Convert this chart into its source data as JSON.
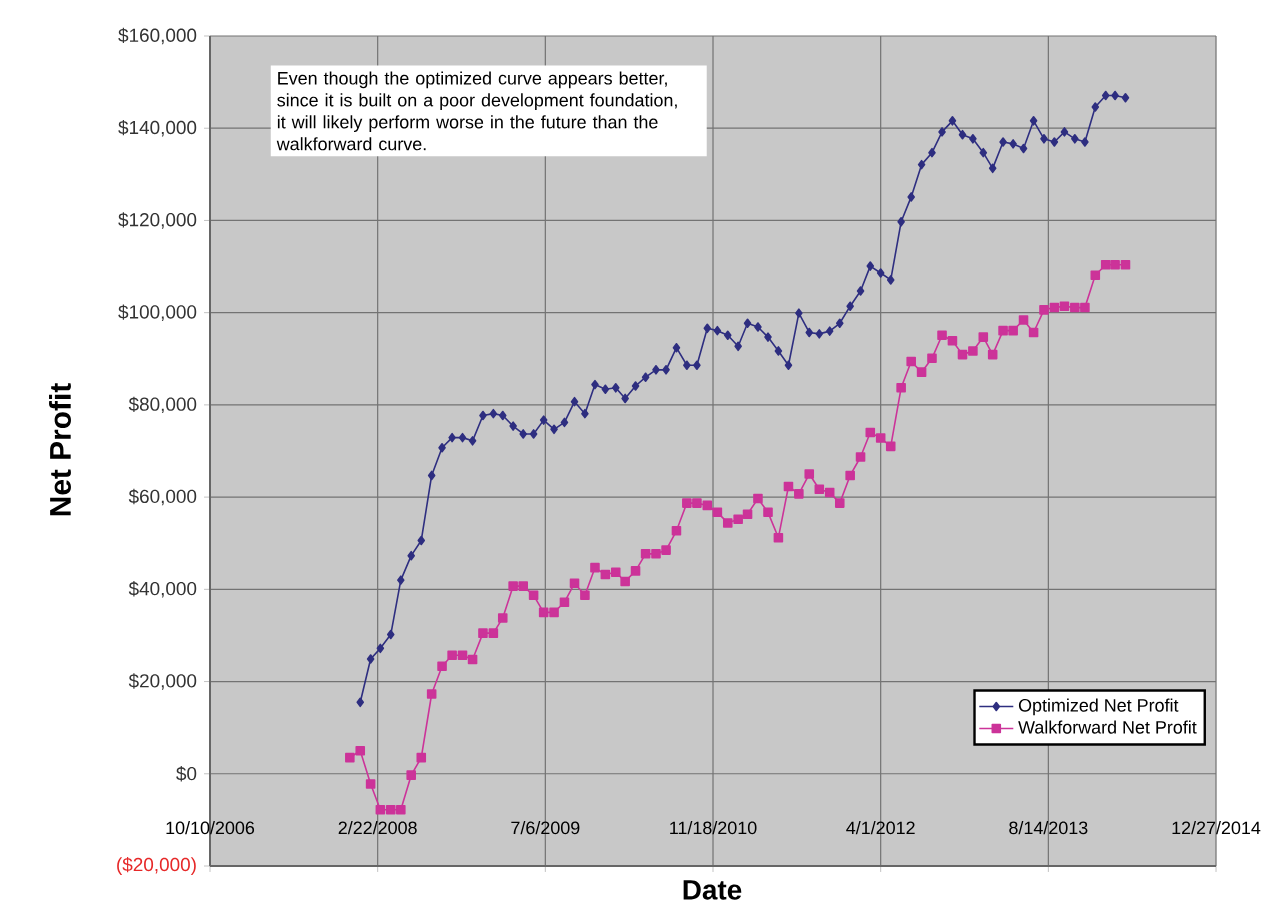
{
  "chart_data": {
    "type": "line",
    "xlabel": "Date",
    "ylabel": "Net Profit",
    "annotations": [
      "Even though the optimized curve appears better, since it is built on a poor development foundation, it will likely perform worse in the future than the walkforward curve."
    ],
    "xlim": [
      "2006-10-10",
      "2014-12-27"
    ],
    "xticks": [
      {
        "value": "2006-10-10",
        "label": "10/10/2006"
      },
      {
        "value": "2008-02-22",
        "label": "2/22/2008"
      },
      {
        "value": "2009-07-06",
        "label": "7/6/2009"
      },
      {
        "value": "2010-11-18",
        "label": "11/18/2010"
      },
      {
        "value": "2012-04-01",
        "label": "4/1/2012"
      },
      {
        "value": "2013-08-14",
        "label": "8/14/2013"
      },
      {
        "value": "2014-12-27",
        "label": "12/27/2014"
      }
    ],
    "ylim": [
      -20000,
      160000
    ],
    "yticks": [
      {
        "value": -20000,
        "label": "($20,000)"
      },
      {
        "value": 0,
        "label": "$0"
      },
      {
        "value": 20000,
        "label": "$20,000"
      },
      {
        "value": 40000,
        "label": "$40,000"
      },
      {
        "value": 60000,
        "label": "$60,000"
      },
      {
        "value": 80000,
        "label": "$80,000"
      },
      {
        "value": 100000,
        "label": "$100,000"
      },
      {
        "value": 120000,
        "label": "$120,000"
      },
      {
        "value": 140000,
        "label": "$140,000"
      },
      {
        "value": 160000,
        "label": "$160,000"
      }
    ],
    "grid": true,
    "legend": "bottom right",
    "line_style": "solid",
    "series": [
      {
        "name": "Optimized Net Profit",
        "color": "#2e2e80",
        "marker": "diamond",
        "x": [
          "2008-01",
          "2008-02",
          "2008-03",
          "2008-04",
          "2008-05",
          "2008-06",
          "2008-07",
          "2008-08",
          "2008-09",
          "2008-10",
          "2008-11",
          "2008-12",
          "2009-01",
          "2009-02",
          "2009-03",
          "2009-04",
          "2009-05",
          "2009-06",
          "2009-07",
          "2009-08",
          "2009-09",
          "2009-10",
          "2009-11",
          "2009-12",
          "2010-01",
          "2010-02",
          "2010-03",
          "2010-04",
          "2010-05",
          "2010-06",
          "2010-07",
          "2010-08",
          "2010-09",
          "2010-10",
          "2010-11",
          "2010-12",
          "2011-01",
          "2011-02",
          "2011-03",
          "2011-04",
          "2011-05",
          "2011-06",
          "2011-07",
          "2011-08",
          "2011-09",
          "2011-10",
          "2011-11",
          "2011-12",
          "2012-01",
          "2012-02",
          "2012-03",
          "2012-04",
          "2012-05",
          "2012-06",
          "2012-07",
          "2012-08",
          "2012-09",
          "2012-10",
          "2012-11",
          "2012-12",
          "2013-01",
          "2013-02",
          "2013-03",
          "2013-04",
          "2013-05",
          "2013-06",
          "2013-07",
          "2013-08",
          "2013-09",
          "2013-10",
          "2013-11",
          "2013-12",
          "2014-01",
          "2014-02",
          "2014-03",
          "2014-04"
        ],
        "values": [
          15500,
          24900,
          27200,
          30200,
          42000,
          47300,
          50600,
          64700,
          70700,
          72900,
          72900,
          72200,
          77700,
          78100,
          77700,
          75400,
          73700,
          73700,
          76700,
          74700,
          76200,
          80700,
          78100,
          84400,
          83400,
          83700,
          81400,
          84100,
          86000,
          87600,
          87600,
          92400,
          88600,
          88600,
          96600,
          96100,
          95100,
          92700,
          97700,
          96900,
          94700,
          91700,
          88600,
          99900,
          95700,
          95400,
          96000,
          97700,
          101400,
          104700,
          110100,
          108600,
          107100,
          119700,
          125100,
          132100,
          134700,
          139200,
          141600,
          138600,
          137700,
          134700,
          131300,
          137000,
          136600,
          135600,
          141600,
          137700,
          137000,
          139200,
          137700,
          137000,
          144600,
          147100,
          147100,
          146600
        ]
      },
      {
        "name": "Walkforward Net Profit",
        "color": "#cc3399",
        "marker": "square",
        "x": [
          "2007-12",
          "2008-01",
          "2008-02",
          "2008-03",
          "2008-04",
          "2008-05",
          "2008-06",
          "2008-07",
          "2008-08",
          "2008-09",
          "2008-10",
          "2008-11",
          "2008-12",
          "2009-01",
          "2009-02",
          "2009-03",
          "2009-04",
          "2009-05",
          "2009-06",
          "2009-07",
          "2009-08",
          "2009-09",
          "2009-10",
          "2009-11",
          "2009-12",
          "2010-01",
          "2010-02",
          "2010-03",
          "2010-04",
          "2010-05",
          "2010-06",
          "2010-07",
          "2010-08",
          "2010-09",
          "2010-10",
          "2010-11",
          "2010-12",
          "2011-01",
          "2011-02",
          "2011-03",
          "2011-04",
          "2011-05",
          "2011-06",
          "2011-07",
          "2011-08",
          "2011-09",
          "2011-10",
          "2011-11",
          "2011-12",
          "2012-01",
          "2012-02",
          "2012-03",
          "2012-04",
          "2012-05",
          "2012-06",
          "2012-07",
          "2012-08",
          "2012-09",
          "2012-10",
          "2012-11",
          "2012-12",
          "2013-01",
          "2013-02",
          "2013-03",
          "2013-04",
          "2013-05",
          "2013-06",
          "2013-07",
          "2013-08",
          "2013-09",
          "2013-10",
          "2013-11",
          "2013-12",
          "2014-01",
          "2014-02",
          "2014-03",
          "2014-04"
        ],
        "values": [
          3500,
          5000,
          -2200,
          -7800,
          -7800,
          -7800,
          -300,
          3500,
          17300,
          23300,
          25700,
          25700,
          24800,
          30500,
          30500,
          33800,
          40700,
          40700,
          38700,
          35000,
          35000,
          37200,
          41300,
          38700,
          44700,
          43200,
          43700,
          41700,
          44000,
          47700,
          47700,
          48500,
          52700,
          58700,
          58700,
          58200,
          56700,
          54400,
          55200,
          56300,
          59700,
          56700,
          51200,
          62300,
          60700,
          65000,
          61700,
          61000,
          58700,
          64700,
          68700,
          74000,
          72800,
          71000,
          83700,
          89400,
          87100,
          90100,
          95100,
          93900,
          90900,
          91700,
          94700,
          90900,
          96100,
          96100,
          98400,
          95700,
          100600,
          101100,
          101400,
          101100,
          101100,
          108100,
          110400,
          110400,
          110400
        ]
      }
    ]
  }
}
